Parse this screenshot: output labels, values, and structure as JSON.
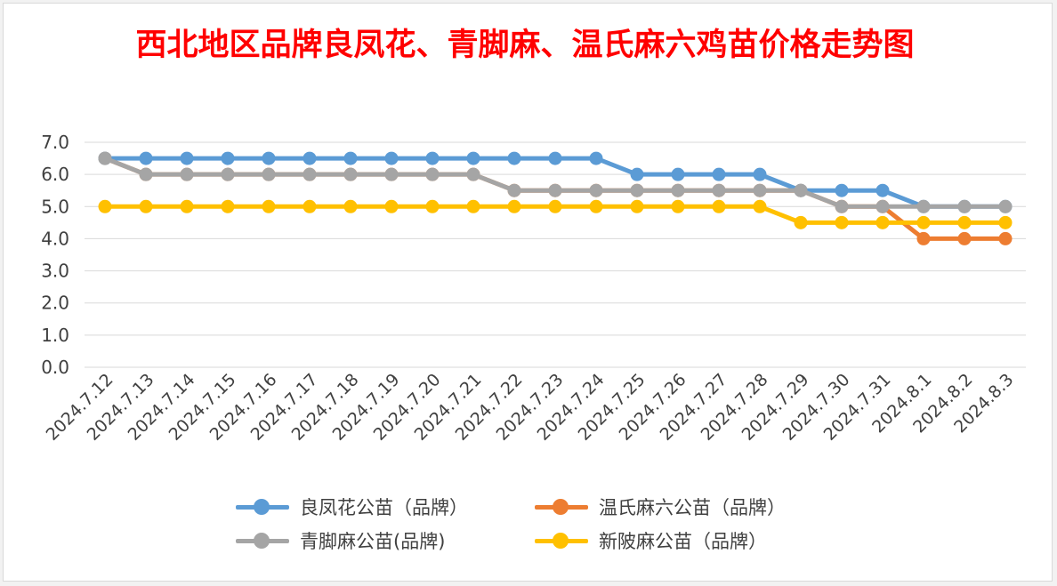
{
  "chart_data": {
    "type": "line",
    "title": "西北地区品牌良凤花、青脚麻、温氏麻六鸡苗价格走势图",
    "title_color": "#ff0000",
    "categories": [
      "2024.7.12",
      "2024.7.13",
      "2024.7.14",
      "2024.7.15",
      "2024.7.16",
      "2024.7.17",
      "2024.7.18",
      "2024.7.19",
      "2024.7.20",
      "2024.7.21",
      "2024.7.22",
      "2024.7.23",
      "2024.7.24",
      "2024.7.25",
      "2024.7.26",
      "2024.7.27",
      "2024.7.28",
      "2024.7.29",
      "2024.7.30",
      "2024.7.31",
      "2024.8.1",
      "2024.8.2",
      "2024.8.3"
    ],
    "ylim": [
      0,
      7
    ],
    "yticks": [
      "0.0",
      "1.0",
      "2.0",
      "3.0",
      "4.0",
      "5.0",
      "6.0",
      "7.0"
    ],
    "grid": true,
    "legend_position": "bottom",
    "series": [
      {
        "name": "温氏麻六公苗（品牌）",
        "color": "#ed7d31",
        "values": [
          6.5,
          6.0,
          6.0,
          6.0,
          6.0,
          6.0,
          6.0,
          6.0,
          6.0,
          6.0,
          5.5,
          5.5,
          5.5,
          5.5,
          5.5,
          5.5,
          5.5,
          5.5,
          5.0,
          5.0,
          4.0,
          4.0,
          4.0
        ]
      },
      {
        "name": "良凤花公苗（品牌）",
        "color": "#5b9bd5",
        "values": [
          6.5,
          6.5,
          6.5,
          6.5,
          6.5,
          6.5,
          6.5,
          6.5,
          6.5,
          6.5,
          6.5,
          6.5,
          6.5,
          6.0,
          6.0,
          6.0,
          6.0,
          5.5,
          5.5,
          5.5,
          5.0,
          5.0,
          5.0
        ]
      },
      {
        "name": "青脚麻公苗(品牌)",
        "color": "#a5a5a5",
        "values": [
          6.5,
          6.0,
          6.0,
          6.0,
          6.0,
          6.0,
          6.0,
          6.0,
          6.0,
          6.0,
          5.5,
          5.5,
          5.5,
          5.5,
          5.5,
          5.5,
          5.5,
          5.5,
          5.0,
          5.0,
          5.0,
          5.0,
          5.0
        ]
      },
      {
        "name": "新陂麻公苗（品牌）",
        "color": "#ffc000",
        "values": [
          5.0,
          5.0,
          5.0,
          5.0,
          5.0,
          5.0,
          5.0,
          5.0,
          5.0,
          5.0,
          5.0,
          5.0,
          5.0,
          5.0,
          5.0,
          5.0,
          5.0,
          4.5,
          4.5,
          4.5,
          4.5,
          4.5,
          4.5
        ]
      }
    ],
    "legend_order": [
      1,
      0,
      2,
      3
    ]
  }
}
